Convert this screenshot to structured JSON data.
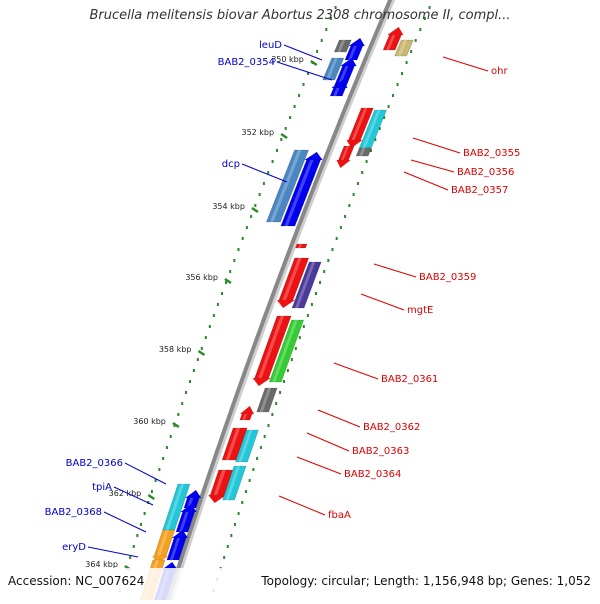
{
  "title": "Brucella melitensis biovar Abortus 2308 chromosome II, compl...",
  "footer": {
    "accession": "Accession: NC_007624",
    "topology": "Topology: circular; Length: 1,156,948 bp; Genes: 1,052"
  },
  "colors": {
    "red": "#ee1111",
    "blue": "#0000ee",
    "backbone": "#888888",
    "ruler": "#2a8a2a",
    "cyan": "#22c8d8",
    "steelblue": "#4a86c0",
    "gray": "#6a6a6a",
    "tan": "#c8b870",
    "purple": "#4a3a9a",
    "green": "#33cc33",
    "orange": "#f5a020",
    "label_red": "#dd0000",
    "label_blue": "#0000cc"
  },
  "ticks": [
    {
      "label": "350 kbp"
    },
    {
      "label": "352 kbp"
    },
    {
      "label": "354 kbp"
    },
    {
      "label": "356 kbp"
    },
    {
      "label": "358 kbp"
    },
    {
      "label": "360 kbp"
    },
    {
      "label": "362 kbp"
    },
    {
      "label": "364 kbp"
    }
  ],
  "gene_labels": [
    {
      "text": "leuD",
      "color": "blue"
    },
    {
      "text": "BAB2_0354",
      "color": "blue"
    },
    {
      "text": "ohr",
      "color": "red"
    },
    {
      "text": "BAB2_0355",
      "color": "red"
    },
    {
      "text": "BAB2_0356",
      "color": "red"
    },
    {
      "text": "BAB2_0357",
      "color": "red"
    },
    {
      "text": "dcp",
      "color": "blue"
    },
    {
      "text": "BAB2_0359",
      "color": "red"
    },
    {
      "text": "mgtE",
      "color": "red"
    },
    {
      "text": "BAB2_0361",
      "color": "red"
    },
    {
      "text": "BAB2_0362",
      "color": "red"
    },
    {
      "text": "BAB2_0363",
      "color": "red"
    },
    {
      "text": "BAB2_0364",
      "color": "red"
    },
    {
      "text": "fbaA",
      "color": "red"
    },
    {
      "text": "BAB2_0366",
      "color": "blue"
    },
    {
      "text": "tpiA",
      "color": "blue"
    },
    {
      "text": "BAB2_0368",
      "color": "blue"
    },
    {
      "text": "eryD",
      "color": "blue"
    }
  ]
}
